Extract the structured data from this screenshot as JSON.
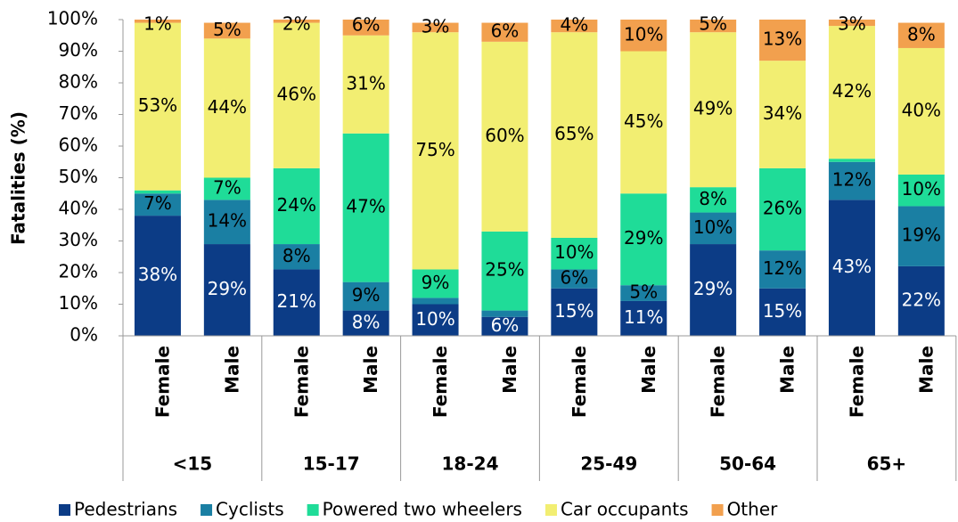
{
  "chart_data": {
    "type": "stacked_bar",
    "y_label": "Fatalities (%)",
    "categories": [
      "Female",
      "Male",
      "Female",
      "Male",
      "Female",
      "Male",
      "Female",
      "Male",
      "Female",
      "Male",
      "Female",
      "Male"
    ],
    "category_groups": [
      "<15",
      "15-17",
      "18-24",
      "25-49",
      "50-64",
      "65+"
    ],
    "ylim": [
      0,
      100
    ],
    "yticks": [
      {
        "value": 0,
        "label": "0%"
      },
      {
        "value": 10,
        "label": "10%"
      },
      {
        "value": 20,
        "label": "20%"
      },
      {
        "value": 30,
        "label": "30%"
      },
      {
        "value": 40,
        "label": "40%"
      },
      {
        "value": 50,
        "label": "50%"
      },
      {
        "value": 60,
        "label": "60%"
      },
      {
        "value": 70,
        "label": "70%"
      },
      {
        "value": 80,
        "label": "80%"
      },
      {
        "value": 90,
        "label": "90%"
      },
      {
        "value": 100,
        "label": "100%"
      }
    ],
    "legend": "bottom",
    "series": [
      {
        "name": "Pedestrians",
        "color": "#0c3c86",
        "values": [
          38,
          29,
          21,
          8,
          10,
          6,
          15,
          11,
          29,
          15,
          43,
          22
        ],
        "value_labels": [
          "38%",
          "29%",
          "21%",
          "8%",
          "10%",
          "6%",
          "15%",
          "11%",
          "29%",
          "15%",
          "43%",
          "22%"
        ]
      },
      {
        "name": "Cyclists",
        "color": "#1a7fa3",
        "values": [
          7,
          14,
          8,
          9,
          2,
          2,
          6,
          5,
          10,
          12,
          12,
          19
        ],
        "value_labels": [
          "7%",
          "14%",
          "8%",
          "9%",
          null,
          null,
          "6%",
          "5%",
          "10%",
          "12%",
          "12%",
          "19%"
        ]
      },
      {
        "name": "Powered two wheelers",
        "color": "#1fdc98",
        "values": [
          1,
          7,
          24,
          47,
          9,
          25,
          10,
          29,
          8,
          26,
          1,
          10
        ],
        "value_labels": [
          null,
          "7%",
          "24%",
          "47%",
          "9%",
          "25%",
          "10%",
          "29%",
          "8%",
          "26%",
          null,
          "10%"
        ]
      },
      {
        "name": "Car occupants",
        "color": "#f2ee72",
        "values": [
          53,
          44,
          46,
          31,
          75,
          60,
          65,
          45,
          49,
          34,
          42,
          40
        ],
        "value_labels": [
          "53%",
          "44%",
          "46%",
          "31%",
          "75%",
          "60%",
          "65%",
          "45%",
          "49%",
          "34%",
          "42%",
          "40%"
        ]
      },
      {
        "name": "Other",
        "color": "#f2a04e",
        "values": [
          1,
          5,
          2,
          6,
          3,
          6,
          4,
          10,
          5,
          13,
          3,
          8
        ],
        "value_labels": [
          "1%",
          "5%",
          "2%",
          "6%",
          "3%",
          "6%",
          "4%",
          "10%",
          "5%",
          "13%",
          "3%",
          "8%"
        ]
      }
    ]
  }
}
